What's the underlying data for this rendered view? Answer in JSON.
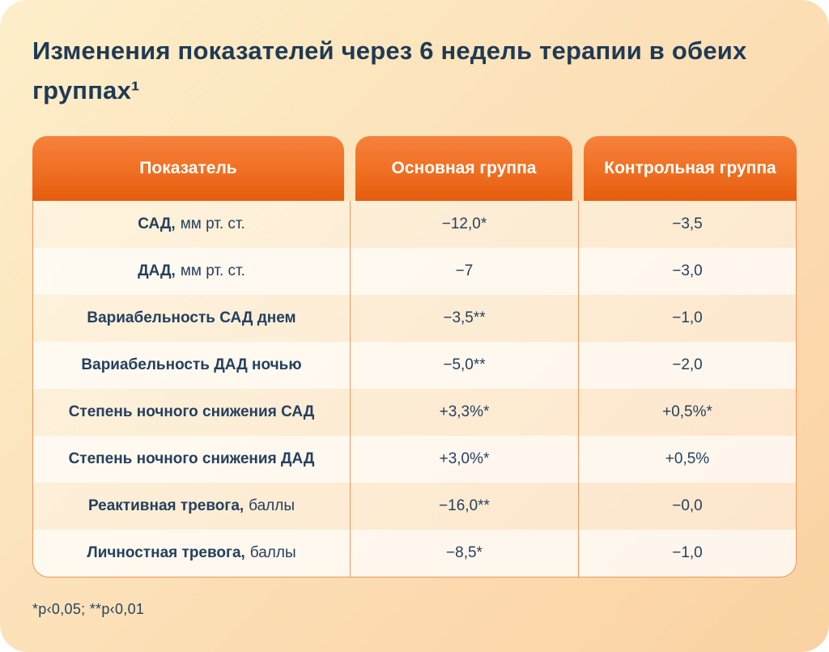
{
  "colors": {
    "card_gradient_start": "#fdefca",
    "card_gradient_end": "#fbd2a2",
    "header_gradient_top": "#f6823c",
    "header_gradient_bottom": "#e65c0e",
    "header_text": "#ffffff",
    "body_text_navy": "#24405f",
    "title_navy": "#1e3a55",
    "table_border_orange": "#ee9660",
    "outside_background": "#ffffff"
  },
  "title": {
    "line1": "Изменения показателей через 6 недель терапии в обеих",
    "line2": "группах¹"
  },
  "table": {
    "headers": {
      "indicator": "Показатель",
      "main_group": "Основная группа",
      "control_group": "Контрольная группа"
    },
    "rows": [
      {
        "name": "САД,",
        "unit": "мм рт. ст.",
        "main": "−12,0*",
        "control": "−3,5"
      },
      {
        "name": "ДАД,",
        "unit": "мм рт. ст.",
        "main": "−7",
        "control": "−3,0"
      },
      {
        "name": "Вариабельность САД днем",
        "unit": "",
        "main": "−3,5**",
        "control": "−1,0"
      },
      {
        "name": "Вариабельность ДАД ночью",
        "unit": "",
        "main": "−5,0**",
        "control": "−2,0"
      },
      {
        "name": "Степень ночного снижения САД",
        "unit": "",
        "main": "+3,3%*",
        "control": "+0,5%*"
      },
      {
        "name": "Степень ночного снижения ДАД",
        "unit": "",
        "main": "+3,0%*",
        "control": "+0,5%"
      },
      {
        "name": "Реактивная тревога,",
        "unit": "баллы",
        "main": "−16,0**",
        "control": "−0,0"
      },
      {
        "name": "Личностная тревога,",
        "unit": "баллы",
        "main": "−8,5*",
        "control": "−1,0"
      }
    ]
  },
  "footnote": "*p‹0,05; **p‹0,01",
  "chart_data": {
    "type": "table",
    "title": "Изменения показателей через 6 недель терапии в обеих группах¹",
    "columns": [
      "Показатель",
      "Основная группа",
      "Контрольная группа"
    ],
    "rows": [
      [
        "САД, мм рт. ст.",
        "−12,0*",
        "−3,5"
      ],
      [
        "ДАД, мм рт. ст.",
        "−7",
        "−3,0"
      ],
      [
        "Вариабельность САД днем",
        "−3,5**",
        "−1,0"
      ],
      [
        "Вариабельность ДАД ночью",
        "−5,0**",
        "−2,0"
      ],
      [
        "Степень ночного снижения САД",
        "+3,3%*",
        "+0,5%*"
      ],
      [
        "Степень ночного снижения ДАД",
        "+3,0%*",
        "+0,5%"
      ],
      [
        "Реактивная тревога, баллы",
        "−16,0**",
        "−0,0"
      ],
      [
        "Личностная тревога, баллы",
        "−8,5*",
        "−1,0"
      ]
    ],
    "footnote": "*p‹0,05; **p‹0,01"
  }
}
